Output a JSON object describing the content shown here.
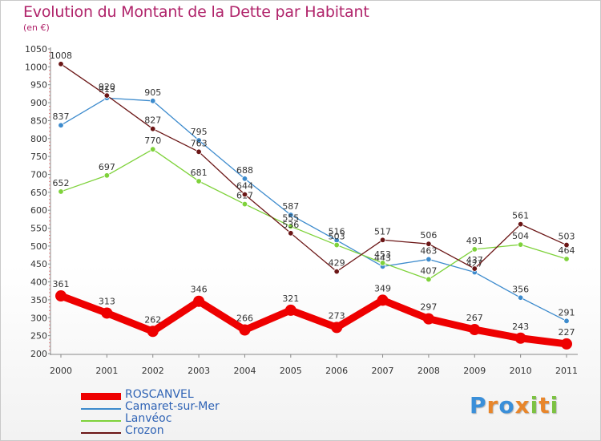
{
  "title": "Evolution du Montant de la Dette par Habitant",
  "subtitle": "(en €)",
  "logo": {
    "text": "Proxiti",
    "letters": [
      "P",
      "r",
      "o",
      "x",
      "i",
      "t",
      "i"
    ],
    "colors": [
      "#3a8fd9",
      "#e8862b",
      "#3a8fd9",
      "#e8862b",
      "#7cc242",
      "#e8862b",
      "#7cc242"
    ]
  },
  "chart_data": {
    "type": "line",
    "title": "Evolution du Montant de la Dette par Habitant",
    "ylabel": "(en €)",
    "xlabel": "",
    "x": [
      "2000",
      "2001",
      "2002",
      "2003",
      "2004",
      "2005",
      "2006",
      "2007",
      "2008",
      "2009",
      "2010",
      "2011"
    ],
    "ylim": [
      200,
      1050
    ],
    "yticks": [
      200,
      250,
      300,
      350,
      400,
      450,
      500,
      550,
      600,
      650,
      700,
      750,
      800,
      850,
      900,
      950,
      1000,
      1050
    ],
    "grid": false,
    "legend_position": "bottom-left",
    "series": [
      {
        "name": "ROSCANVEL",
        "color": "#ee0000",
        "values": [
          361,
          313,
          262,
          346,
          266,
          321,
          273,
          349,
          297,
          267,
          243,
          227
        ]
      },
      {
        "name": "Camaret-sur-Mer",
        "color": "#3d8bcd",
        "values": [
          837,
          913,
          905,
          795,
          688,
          587,
          516,
          443,
          463,
          427,
          356,
          291
        ]
      },
      {
        "name": "Lanvéoc",
        "color": "#7ed23a",
        "values": [
          652,
          697,
          770,
          681,
          617,
          555,
          503,
          453,
          407,
          491,
          504,
          464
        ]
      },
      {
        "name": "Crozon",
        "color": "#6b1616",
        "values": [
          1008,
          920,
          827,
          763,
          644,
          536,
          429,
          517,
          506,
          437,
          561,
          503
        ]
      }
    ]
  }
}
